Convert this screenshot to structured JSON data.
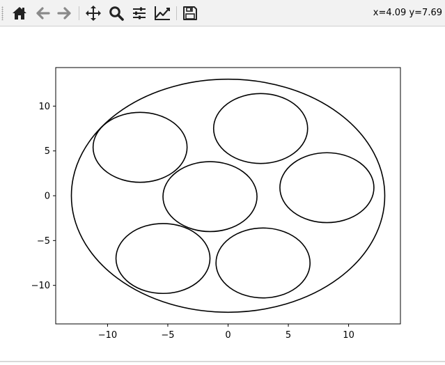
{
  "toolbar": {
    "buttons": [
      {
        "name": "home-button",
        "icon": "home-icon"
      },
      {
        "name": "back-button",
        "icon": "arrow-left-icon"
      },
      {
        "name": "forward-button",
        "icon": "arrow-right-icon"
      },
      {
        "name": "pan-button",
        "icon": "move-icon"
      },
      {
        "name": "zoom-button",
        "icon": "magnifier-icon"
      },
      {
        "name": "configure-subplots-button",
        "icon": "sliders-icon"
      },
      {
        "name": "edit-axis-button",
        "icon": "line-chart-icon"
      },
      {
        "name": "save-button",
        "icon": "floppy-disk-icon"
      }
    ],
    "coordinates": "x=4.09 y=7.69"
  },
  "colors": {
    "toolbar_bg": "#f2f2f2",
    "icon": "#222222",
    "icon_disabled": "#8a8a8a",
    "stroke": "#000000"
  },
  "chart_data": {
    "type": "line",
    "title": "",
    "xlabel": "",
    "ylabel": "",
    "xlim": [
      -14.3,
      14.3
    ],
    "ylim": [
      -14.3,
      14.3
    ],
    "xticks": [
      -10,
      -5,
      0,
      5,
      10
    ],
    "xtick_labels": [
      "−10",
      "−5",
      "0",
      "5",
      "10"
    ],
    "yticks": [
      10,
      5,
      0,
      -5,
      -10
    ],
    "ytick_labels": [
      "10",
      "5",
      "0",
      "−5",
      "−10"
    ],
    "grid": false,
    "circles": [
      {
        "cx": 0,
        "cy": 0,
        "r": 13
      },
      {
        "cx": -7.3,
        "cy": 5.4,
        "r": 3.9
      },
      {
        "cx": 2.7,
        "cy": 7.5,
        "r": 3.9
      },
      {
        "cx": -1.5,
        "cy": -0.1,
        "r": 3.9
      },
      {
        "cx": 8.2,
        "cy": 0.9,
        "r": 3.9
      },
      {
        "cx": -5.4,
        "cy": -7.0,
        "r": 3.9
      },
      {
        "cx": 2.9,
        "cy": -7.5,
        "r": 3.9
      }
    ]
  }
}
